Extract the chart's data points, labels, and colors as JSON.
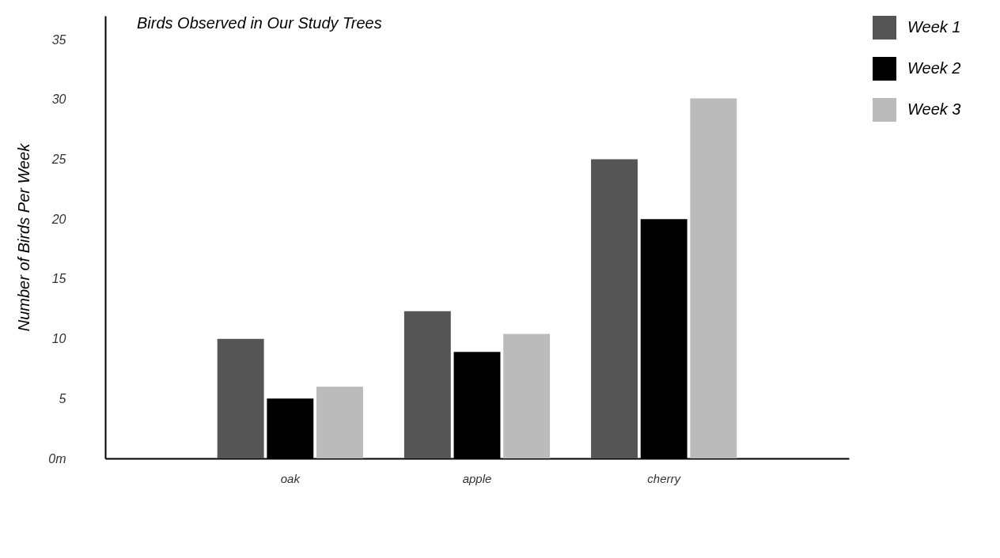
{
  "chart_data": {
    "type": "bar",
    "title": "Birds Observed in Our Study Trees",
    "ylabel": "Number of Birds Per Week",
    "categories": [
      "oak",
      "apple",
      "cherry"
    ],
    "series": [
      {
        "name": "Week 1",
        "color": "#555555",
        "values": [
          10,
          12.3,
          25
        ]
      },
      {
        "name": "Week 2",
        "color": "#000000",
        "values": [
          5,
          8.9,
          20
        ]
      },
      {
        "name": "Week 3",
        "color": "#bbbbbb",
        "values": [
          6,
          10.4,
          30.1
        ]
      }
    ],
    "ylim": [
      0,
      37
    ],
    "yticks": [
      {
        "value": 0,
        "label": "0m"
      },
      5,
      10,
      15,
      20,
      25,
      30,
      35
    ],
    "grid": false,
    "legend": "right"
  }
}
